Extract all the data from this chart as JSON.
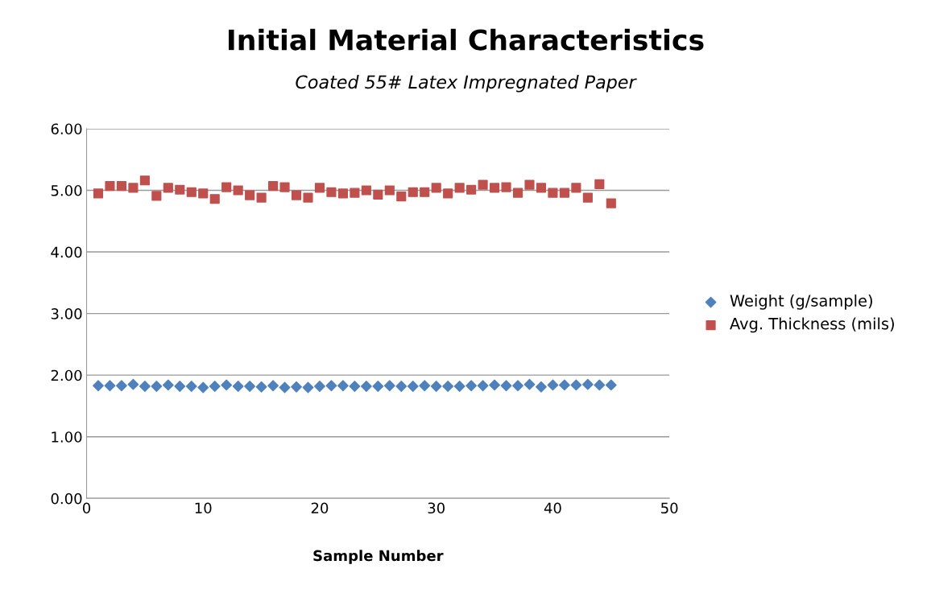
{
  "chart_data": {
    "type": "scatter",
    "title": "Initial Material Characteristics",
    "subtitle": "Coated 55# Latex Impregnated Paper",
    "xlabel": "Sample Number",
    "x": [
      1,
      2,
      3,
      4,
      5,
      6,
      7,
      8,
      9,
      10,
      11,
      12,
      13,
      14,
      15,
      16,
      17,
      18,
      19,
      20,
      21,
      22,
      23,
      24,
      25,
      26,
      27,
      28,
      29,
      30,
      31,
      32,
      33,
      34,
      35,
      36,
      37,
      38,
      39,
      40,
      41,
      42,
      43,
      44,
      45
    ],
    "series": [
      {
        "name": "Weight (g/sample)",
        "color": "#4f81bd",
        "marker": "diamond",
        "values": [
          1.83,
          1.83,
          1.83,
          1.85,
          1.82,
          1.82,
          1.84,
          1.82,
          1.82,
          1.8,
          1.82,
          1.84,
          1.82,
          1.82,
          1.81,
          1.83,
          1.8,
          1.81,
          1.8,
          1.82,
          1.83,
          1.83,
          1.82,
          1.82,
          1.82,
          1.83,
          1.82,
          1.82,
          1.83,
          1.82,
          1.82,
          1.82,
          1.83,
          1.83,
          1.84,
          1.83,
          1.83,
          1.85,
          1.81,
          1.84,
          1.84,
          1.84,
          1.85,
          1.84,
          1.84
        ]
      },
      {
        "name": "Avg. Thickness (mils)",
        "color": "#c0504d",
        "marker": "square",
        "values": [
          4.95,
          5.07,
          5.07,
          5.04,
          5.16,
          4.91,
          5.04,
          5.01,
          4.97,
          4.95,
          4.86,
          5.05,
          5.0,
          4.92,
          4.88,
          5.07,
          5.05,
          4.92,
          4.88,
          5.04,
          4.97,
          4.95,
          4.96,
          5.0,
          4.93,
          5.0,
          4.9,
          4.97,
          4.97,
          5.04,
          4.95,
          5.04,
          5.01,
          5.09,
          5.04,
          5.05,
          4.96,
          5.09,
          5.04,
          4.96,
          4.96,
          5.04,
          4.88,
          5.1,
          4.79
        ]
      }
    ],
    "xlim": [
      0,
      50
    ],
    "xticks": [
      0,
      10,
      20,
      30,
      40,
      50
    ],
    "ylim": [
      0,
      6
    ],
    "yticks": [
      {
        "value": 0,
        "label": "0.00"
      },
      {
        "value": 1,
        "label": "1.00"
      },
      {
        "value": 2,
        "label": "2.00"
      },
      {
        "value": 3,
        "label": "3.00"
      },
      {
        "value": 4,
        "label": "4.00"
      },
      {
        "value": 5,
        "label": "5.00"
      },
      {
        "value": 6,
        "label": "6.00"
      }
    ],
    "grid": "y",
    "legend": "right"
  }
}
